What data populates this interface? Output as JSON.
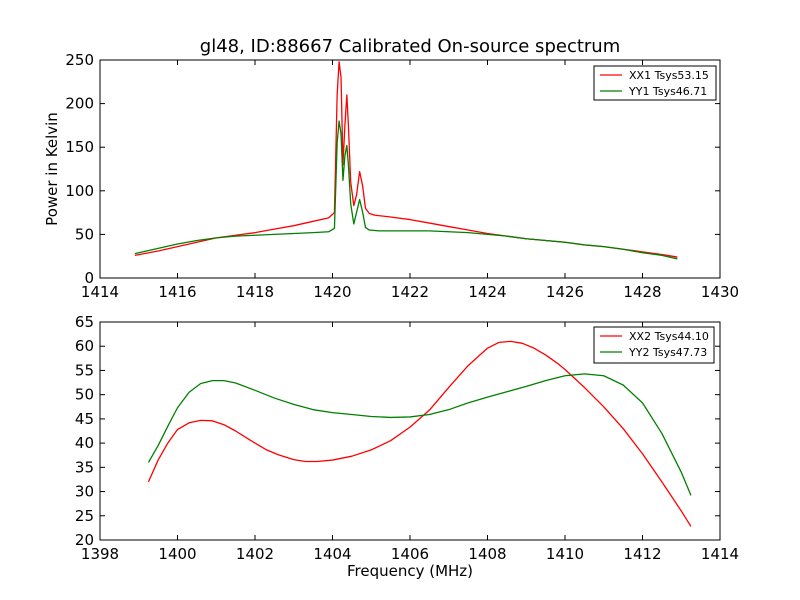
{
  "chart_data": [
    {
      "type": "line",
      "title": "gl48, ID:88667 Calibrated On-source spectrum",
      "xlabel": "",
      "ylabel": "Power in Kelvin",
      "xlim": [
        1414,
        1430
      ],
      "ylim": [
        0,
        250
      ],
      "xticks": [
        1414,
        1416,
        1418,
        1420,
        1422,
        1424,
        1426,
        1428,
        1430
      ],
      "yticks": [
        0,
        50,
        100,
        150,
        200,
        250
      ],
      "grid": false,
      "legend_position": "top-right",
      "series": [
        {
          "name": "XX1 Tsys53.15",
          "color": "#ff0000",
          "points": [
            [
              1414.9,
              26
            ],
            [
              1415.5,
              31
            ],
            [
              1416.0,
              36
            ],
            [
              1416.5,
              41
            ],
            [
              1417.0,
              46
            ],
            [
              1417.5,
              49
            ],
            [
              1418.0,
              52
            ],
            [
              1418.5,
              56
            ],
            [
              1419.0,
              60
            ],
            [
              1419.5,
              65
            ],
            [
              1419.9,
              69
            ],
            [
              1420.05,
              75
            ],
            [
              1420.12,
              210
            ],
            [
              1420.17,
              248
            ],
            [
              1420.22,
              230
            ],
            [
              1420.27,
              130
            ],
            [
              1420.32,
              175
            ],
            [
              1420.37,
              210
            ],
            [
              1420.41,
              175
            ],
            [
              1420.47,
              110
            ],
            [
              1420.55,
              83
            ],
            [
              1420.62,
              95
            ],
            [
              1420.7,
              122
            ],
            [
              1420.78,
              105
            ],
            [
              1420.85,
              80
            ],
            [
              1420.95,
              74
            ],
            [
              1421.1,
              72
            ],
            [
              1421.5,
              70
            ],
            [
              1422.0,
              67
            ],
            [
              1422.5,
              63
            ],
            [
              1423.0,
              59
            ],
            [
              1423.5,
              55
            ],
            [
              1424.0,
              51
            ],
            [
              1424.5,
              48
            ],
            [
              1425.0,
              45
            ],
            [
              1425.5,
              43
            ],
            [
              1426.0,
              41
            ],
            [
              1426.5,
              38
            ],
            [
              1427.0,
              36
            ],
            [
              1427.5,
              33
            ],
            [
              1428.0,
              30
            ],
            [
              1428.5,
              27
            ],
            [
              1428.9,
              24
            ]
          ]
        },
        {
          "name": "YY1 Tsys46.71",
          "color": "#008000",
          "points": [
            [
              1414.9,
              28
            ],
            [
              1415.5,
              34
            ],
            [
              1416.0,
              39
            ],
            [
              1416.5,
              43
            ],
            [
              1417.0,
              46
            ],
            [
              1417.5,
              48
            ],
            [
              1418.0,
              49
            ],
            [
              1418.5,
              50
            ],
            [
              1419.0,
              51
            ],
            [
              1419.5,
              52
            ],
            [
              1419.9,
              53
            ],
            [
              1420.05,
              57
            ],
            [
              1420.12,
              155
            ],
            [
              1420.17,
              180
            ],
            [
              1420.22,
              165
            ],
            [
              1420.27,
              112
            ],
            [
              1420.32,
              140
            ],
            [
              1420.37,
              152
            ],
            [
              1420.41,
              130
            ],
            [
              1420.47,
              85
            ],
            [
              1420.55,
              62
            ],
            [
              1420.62,
              75
            ],
            [
              1420.7,
              90
            ],
            [
              1420.78,
              75
            ],
            [
              1420.85,
              58
            ],
            [
              1420.95,
              55
            ],
            [
              1421.2,
              54
            ],
            [
              1421.5,
              54
            ],
            [
              1422.0,
              54
            ],
            [
              1422.5,
              54
            ],
            [
              1423.0,
              53
            ],
            [
              1423.5,
              52
            ],
            [
              1424.0,
              50
            ],
            [
              1424.5,
              48
            ],
            [
              1425.0,
              45
            ],
            [
              1425.5,
              43
            ],
            [
              1426.0,
              41
            ],
            [
              1426.5,
              38
            ],
            [
              1427.0,
              36
            ],
            [
              1427.5,
              33
            ],
            [
              1428.0,
              29
            ],
            [
              1428.5,
              26
            ],
            [
              1428.9,
              22
            ]
          ]
        }
      ]
    },
    {
      "type": "line",
      "title": "",
      "xlabel": "Frequency (MHz)",
      "ylabel": "",
      "xlim": [
        1398,
        1414
      ],
      "ylim": [
        20,
        65
      ],
      "xticks": [
        1398,
        1400,
        1402,
        1404,
        1406,
        1408,
        1410,
        1412,
        1414
      ],
      "yticks": [
        20,
        25,
        30,
        35,
        40,
        45,
        50,
        55,
        60,
        65
      ],
      "grid": false,
      "legend_position": "top-right",
      "series": [
        {
          "name": "XX2 Tsys44.10",
          "color": "#ff0000",
          "points": [
            [
              1399.25,
              32
            ],
            [
              1399.5,
              36.5
            ],
            [
              1399.75,
              40
            ],
            [
              1400.0,
              42.8
            ],
            [
              1400.3,
              44.2
            ],
            [
              1400.6,
              44.7
            ],
            [
              1400.9,
              44.6
            ],
            [
              1401.2,
              43.8
            ],
            [
              1401.5,
              42.5
            ],
            [
              1401.8,
              41
            ],
            [
              1402.0,
              40
            ],
            [
              1402.3,
              38.6
            ],
            [
              1402.6,
              37.6
            ],
            [
              1403.0,
              36.6
            ],
            [
              1403.3,
              36.2
            ],
            [
              1403.6,
              36.2
            ],
            [
              1404.0,
              36.5
            ],
            [
              1404.5,
              37.3
            ],
            [
              1405.0,
              38.6
            ],
            [
              1405.5,
              40.5
            ],
            [
              1406.0,
              43.3
            ],
            [
              1406.5,
              46.8
            ],
            [
              1407.0,
              51.5
            ],
            [
              1407.5,
              56
            ],
            [
              1408.0,
              59.6
            ],
            [
              1408.3,
              60.8
            ],
            [
              1408.6,
              61
            ],
            [
              1408.9,
              60.6
            ],
            [
              1409.2,
              59.6
            ],
            [
              1409.5,
              58.2
            ],
            [
              1409.8,
              56.5
            ],
            [
              1410.0,
              55.2
            ],
            [
              1410.5,
              51.5
            ],
            [
              1411.0,
              47.5
            ],
            [
              1411.5,
              43
            ],
            [
              1412.0,
              37.8
            ],
            [
              1412.5,
              32
            ],
            [
              1413.0,
              26
            ],
            [
              1413.25,
              22.8
            ]
          ]
        },
        {
          "name": "YY2 Tsys47.73",
          "color": "#008000",
          "points": [
            [
              1399.25,
              36
            ],
            [
              1399.5,
              39.5
            ],
            [
              1399.75,
              43.5
            ],
            [
              1400.0,
              47.3
            ],
            [
              1400.3,
              50.5
            ],
            [
              1400.6,
              52.3
            ],
            [
              1400.9,
              52.9
            ],
            [
              1401.2,
              52.9
            ],
            [
              1401.5,
              52.4
            ],
            [
              1402.0,
              50.9
            ],
            [
              1402.5,
              49.3
            ],
            [
              1403.0,
              48
            ],
            [
              1403.5,
              46.9
            ],
            [
              1404.0,
              46.3
            ],
            [
              1404.5,
              45.9
            ],
            [
              1405.0,
              45.5
            ],
            [
              1405.5,
              45.3
            ],
            [
              1406.0,
              45.4
            ],
            [
              1406.5,
              45.9
            ],
            [
              1407.0,
              46.9
            ],
            [
              1407.5,
              48.3
            ],
            [
              1408.0,
              49.5
            ],
            [
              1408.5,
              50.6
            ],
            [
              1409.0,
              51.7
            ],
            [
              1409.5,
              52.9
            ],
            [
              1410.0,
              53.9
            ],
            [
              1410.5,
              54.3
            ],
            [
              1411.0,
              53.9
            ],
            [
              1411.5,
              52
            ],
            [
              1412.0,
              48.3
            ],
            [
              1412.5,
              42
            ],
            [
              1413.0,
              34
            ],
            [
              1413.25,
              29.2
            ]
          ]
        }
      ]
    }
  ]
}
